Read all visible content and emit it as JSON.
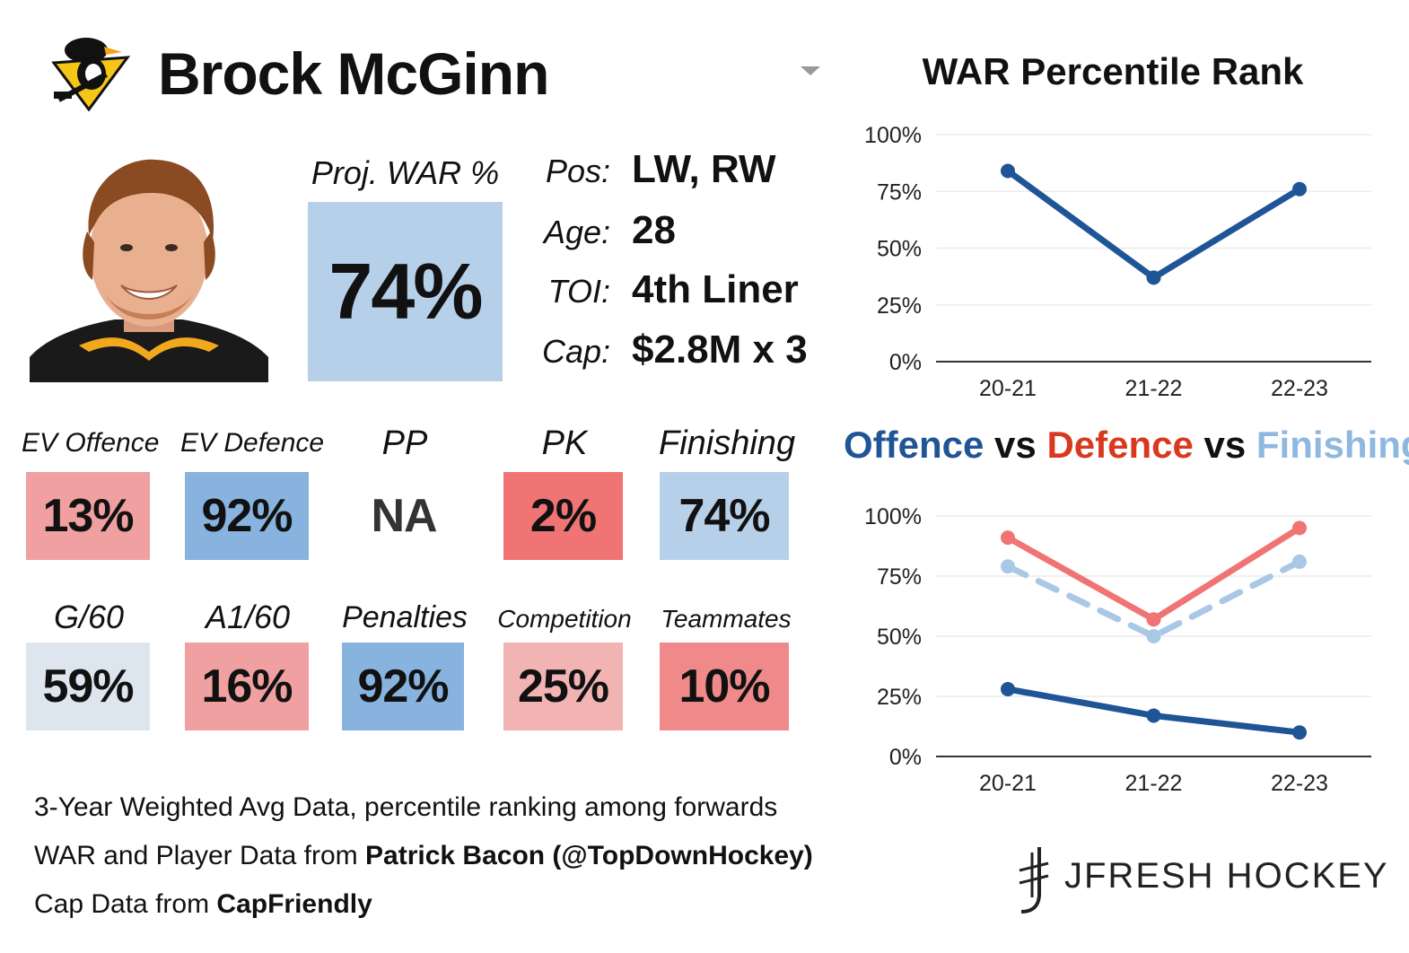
{
  "header": {
    "player_name": "Brock McGinn",
    "team_logo_icon": "penguins-logo-icon",
    "dropdown_icon": "chevron-down-icon"
  },
  "projection": {
    "label": "Proj. WAR %",
    "value": "74%",
    "color": "#b7d0ea"
  },
  "info": [
    {
      "label": "Pos:",
      "value": "LW, RW"
    },
    {
      "label": "Age:",
      "value": "28"
    },
    {
      "label": "TOI:",
      "value": "4th Liner"
    },
    {
      "label": "Cap:",
      "value": "$2.8M x 3"
    }
  ],
  "metrics_row1": [
    {
      "label": "EV Offence",
      "value": "13%",
      "color": "#f0a0a0"
    },
    {
      "label": "EV Defence",
      "value": "92%",
      "color": "#87b3de"
    },
    {
      "label": "PP",
      "value": "NA",
      "color": "#ffffff"
    },
    {
      "label": "PK",
      "value": "2%",
      "color": "#f07474"
    },
    {
      "label": "Finishing",
      "value": "74%",
      "color": "#b7d0ea"
    }
  ],
  "metrics_row2": [
    {
      "label": "G/60",
      "value": "59%",
      "color": "#dde6ef"
    },
    {
      "label": "A1/60",
      "value": "16%",
      "color": "#f0a0a0"
    },
    {
      "label": "Penalties",
      "value": "92%",
      "color": "#87b3de"
    },
    {
      "label": "Competition",
      "value": "25%",
      "color": "#f2b3b3"
    },
    {
      "label": "Teammates",
      "value": "10%",
      "color": "#f08a8a"
    }
  ],
  "notes": {
    "line1": "3-Year Weighted Avg Data, percentile ranking among forwards",
    "line2_prefix": "WAR and Player Data from ",
    "line2_bold": "Patrick Bacon (@TopDownHockey)",
    "line3_prefix": "Cap Data from ",
    "line3_bold": "CapFriendly"
  },
  "brand": {
    "name": "JFRESH HOCKEY",
    "icon": "jfresh-logo-icon"
  },
  "chart_titles": {
    "war": "WAR Percentile Rank",
    "ovd_parts": [
      "Offence",
      " vs ",
      "Defence",
      " vs ",
      "Finishing"
    ],
    "ovd_colors": [
      "#1f5596",
      "#111111",
      "#d9381e",
      "#111111",
      "#8fb8e0"
    ]
  },
  "chart_data": [
    {
      "type": "line",
      "title": "WAR Percentile Rank",
      "categories": [
        "20-21",
        "21-22",
        "22-23"
      ],
      "ylim": [
        0,
        100
      ],
      "yticks": [
        "0%",
        "25%",
        "50%",
        "75%",
        "100%"
      ],
      "grid": true,
      "series": [
        {
          "values": [
            84,
            37,
            76
          ],
          "color": "#1f5596",
          "dash": false
        }
      ]
    },
    {
      "type": "line",
      "title": "Offence vs Defence vs Finishing",
      "categories": [
        "20-21",
        "21-22",
        "22-23"
      ],
      "ylim": [
        0,
        100
      ],
      "yticks": [
        "0%",
        "25%",
        "50%",
        "75%",
        "100%"
      ],
      "grid": true,
      "series": [
        {
          "name": "Offence",
          "values": [
            28,
            17,
            10
          ],
          "color": "#1f5596",
          "dash": false
        },
        {
          "name": "Defence",
          "values": [
            91,
            57,
            95
          ],
          "color": "#f07474",
          "dash": false
        },
        {
          "name": "Finishing",
          "values": [
            79,
            50,
            81
          ],
          "color": "#a9c8e6",
          "dash": true
        }
      ]
    }
  ]
}
